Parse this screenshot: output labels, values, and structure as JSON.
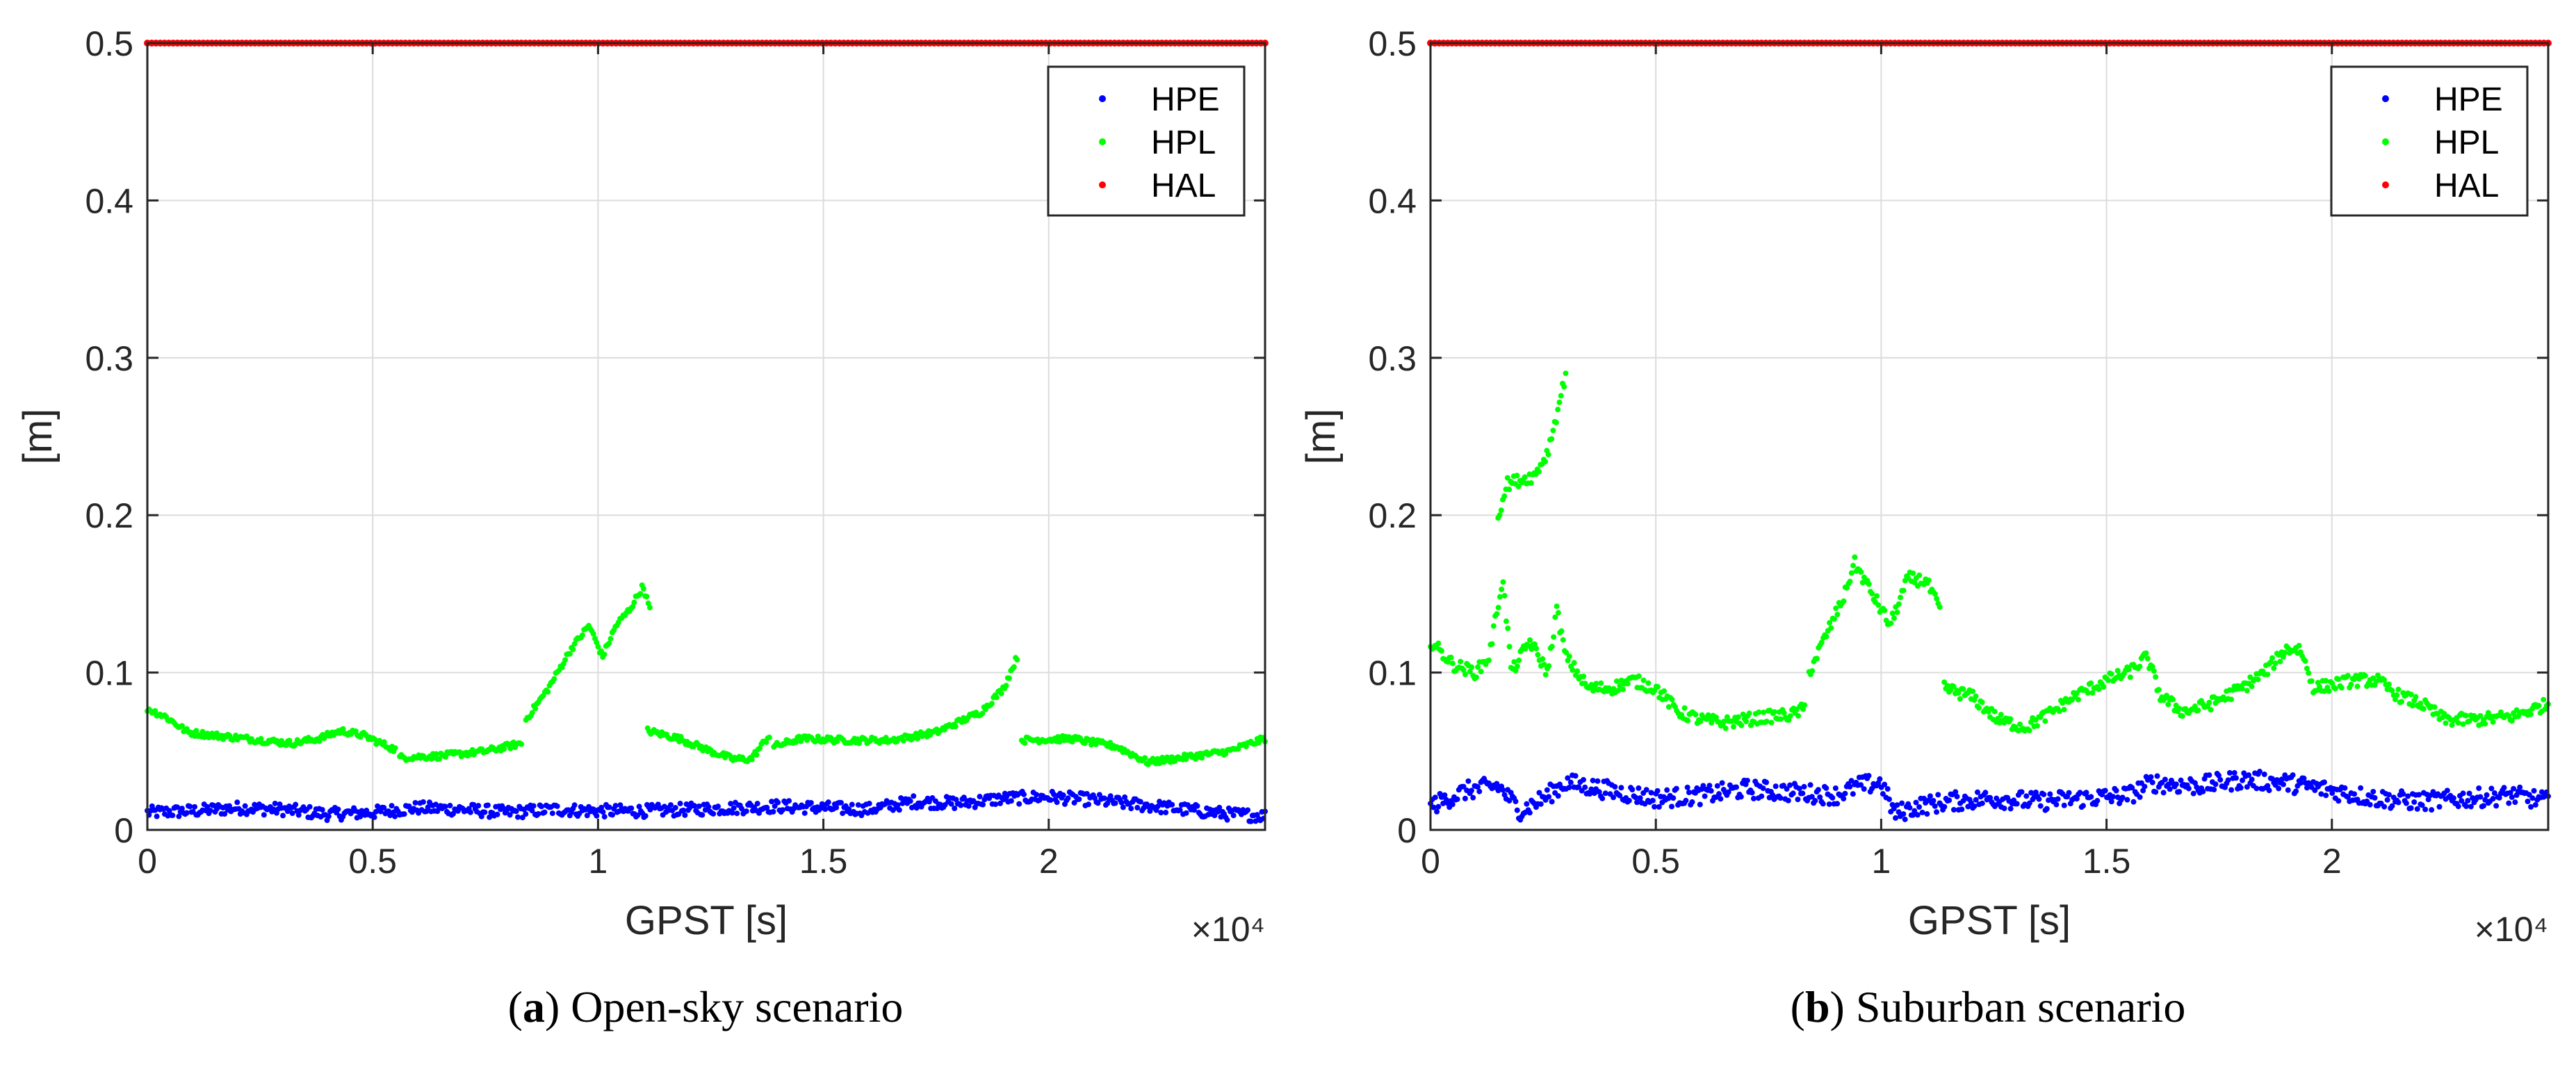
{
  "chart_data": [
    {
      "type": "scatter",
      "caption_letter": "a",
      "caption": "Open-sky scenario",
      "xlabel": "GPST [s]",
      "ylabel": "[m]",
      "x_exponent": "×10⁴",
      "xlim": [
        0,
        24800
      ],
      "ylim": [
        0,
        0.5
      ],
      "x_ticks": [
        0,
        5000,
        10000,
        15000,
        20000
      ],
      "x_tick_labels": [
        "0",
        "0.5",
        "1",
        "1.5",
        "2"
      ],
      "y_ticks": [
        0,
        0.1,
        0.2,
        0.3,
        0.4,
        0.5
      ],
      "y_tick_labels": [
        "0",
        "0.1",
        "0.2",
        "0.3",
        "0.4",
        "0.5"
      ],
      "grid": true,
      "legend_position": "top-right",
      "series": [
        {
          "name": "HPE",
          "color": "#0000ff",
          "spread": 0.004,
          "segments": [
            [
              [
                0,
                0.011
              ],
              [
                1000,
                0.012
              ],
              [
                2000,
                0.014
              ],
              [
                3000,
                0.013
              ],
              [
                4000,
                0.01
              ],
              [
                5000,
                0.011
              ],
              [
                6000,
                0.014
              ],
              [
                7000,
                0.013
              ],
              [
                8000,
                0.011
              ],
              [
                9000,
                0.013
              ],
              [
                10000,
                0.012
              ],
              [
                11000,
                0.012
              ],
              [
                12000,
                0.013
              ],
              [
                13000,
                0.014
              ],
              [
                14000,
                0.015
              ],
              [
                15000,
                0.014
              ],
              [
                16000,
                0.013
              ],
              [
                17000,
                0.018
              ],
              [
                18000,
                0.017
              ],
              [
                19000,
                0.02
              ],
              [
                20000,
                0.021
              ],
              [
                21000,
                0.019
              ],
              [
                22000,
                0.016
              ],
              [
                23000,
                0.013
              ],
              [
                24000,
                0.01
              ],
              [
                24800,
                0.009
              ]
            ]
          ]
        },
        {
          "name": "HPL",
          "color": "#00ff00",
          "spread": 0.002,
          "segments": [
            [
              [
                0,
                0.077
              ],
              [
                400,
                0.072
              ],
              [
                900,
                0.062
              ],
              [
                1500,
                0.06
              ],
              [
                2200,
                0.058
              ],
              [
                3200,
                0.055
              ],
              [
                3800,
                0.058
              ],
              [
                4300,
                0.063
              ],
              [
                4800,
                0.06
              ],
              [
                5500,
                0.051
              ]
            ],
            [
              [
                5600,
                0.046
              ],
              [
                6500,
                0.047
              ],
              [
                7500,
                0.05
              ],
              [
                8300,
                0.055
              ]
            ],
            [
              [
                8400,
                0.07
              ],
              [
                8900,
                0.09
              ],
              [
                9400,
                0.115
              ],
              [
                9800,
                0.13
              ],
              [
                10100,
                0.11
              ],
              [
                10400,
                0.13
              ],
              [
                10700,
                0.14
              ],
              [
                11000,
                0.155
              ],
              [
                11150,
                0.14
              ]
            ],
            [
              [
                11100,
                0.063
              ],
              [
                11800,
                0.058
              ],
              [
                12500,
                0.05
              ],
              [
                13000,
                0.045
              ],
              [
                13400,
                0.045
              ],
              [
                13800,
                0.06
              ]
            ],
            [
              [
                13900,
                0.053
              ],
              [
                14500,
                0.058
              ],
              [
                15500,
                0.057
              ],
              [
                16500,
                0.057
              ],
              [
                17500,
                0.062
              ],
              [
                18500,
                0.075
              ],
              [
                19000,
                0.09
              ],
              [
                19300,
                0.11
              ]
            ],
            [
              [
                19400,
                0.057
              ],
              [
                20500,
                0.058
              ],
              [
                21500,
                0.053
              ],
              [
                22200,
                0.043
              ],
              [
                23000,
                0.046
              ],
              [
                24000,
                0.05
              ],
              [
                24800,
                0.058
              ]
            ]
          ]
        },
        {
          "name": "HAL",
          "color": "#ff0000",
          "spread": 0,
          "segments": [
            [
              [
                0,
                0.5
              ],
              [
                24800,
                0.5
              ]
            ]
          ]
        }
      ]
    },
    {
      "type": "scatter",
      "caption_letter": "b",
      "caption": "Suburban scenario",
      "xlabel": "GPST [s]",
      "ylabel": "[m]",
      "x_exponent": "×10⁴",
      "xlim": [
        0,
        24800
      ],
      "ylim": [
        0,
        0.5
      ],
      "x_ticks": [
        0,
        5000,
        10000,
        15000,
        20000
      ],
      "x_tick_labels": [
        "0",
        "0.5",
        "1",
        "1.5",
        "2"
      ],
      "y_ticks": [
        0,
        0.1,
        0.2,
        0.3,
        0.4,
        0.5
      ],
      "y_tick_labels": [
        "0",
        "0.1",
        "0.2",
        "0.3",
        "0.4",
        "0.5"
      ],
      "grid": true,
      "legend_position": "top-right",
      "series": [
        {
          "name": "HPE",
          "color": "#0000ff",
          "spread": 0.006,
          "segments": [
            [
              [
                0,
                0.015
              ],
              [
                800,
                0.025
              ],
              [
                1500,
                0.028
              ],
              [
                2000,
                0.012
              ],
              [
                2500,
                0.02
              ],
              [
                3000,
                0.03
              ],
              [
                4000,
                0.025
              ],
              [
                5000,
                0.02
              ],
              [
                6000,
                0.022
              ],
              [
                7000,
                0.026
              ],
              [
                8000,
                0.024
              ],
              [
                9000,
                0.022
              ],
              [
                9500,
                0.028
              ],
              [
                10000,
                0.03
              ],
              [
                10300,
                0.01
              ],
              [
                10800,
                0.015
              ],
              [
                11500,
                0.018
              ],
              [
                12500,
                0.02
              ],
              [
                13500,
                0.018
              ],
              [
                14500,
                0.02
              ],
              [
                15500,
                0.022
              ],
              [
                16000,
                0.03
              ],
              [
                17000,
                0.028
              ],
              [
                18000,
                0.032
              ],
              [
                19000,
                0.03
              ],
              [
                20000,
                0.025
              ],
              [
                21000,
                0.02
              ],
              [
                22000,
                0.018
              ],
              [
                23000,
                0.02
              ],
              [
                24000,
                0.022
              ],
              [
                24800,
                0.018
              ]
            ]
          ]
        },
        {
          "name": "HPL",
          "color": "#00ff00",
          "spread": 0.004,
          "segments": [
            [
              [
                0,
                0.12
              ],
              [
                500,
                0.105
              ],
              [
                1000,
                0.1
              ],
              [
                1300,
                0.11
              ],
              [
                1600,
                0.16
              ],
              [
                1800,
                0.1
              ],
              [
                2200,
                0.12
              ],
              [
                2600,
                0.1
              ],
              [
                2800,
                0.14
              ],
              [
                3000,
                0.11
              ],
              [
                3500,
                0.09
              ],
              [
                4000,
                0.09
              ],
              [
                4500,
                0.095
              ],
              [
                5000,
                0.09
              ],
              [
                5500,
                0.075
              ],
              [
                6000,
                0.07
              ],
              [
                6500,
                0.068
              ],
              [
                7000,
                0.07
              ],
              [
                7500,
                0.072
              ],
              [
                8000,
                0.073
              ],
              [
                8300,
                0.077
              ]
            ],
            [
              [
                8400,
                0.1
              ],
              [
                8800,
                0.125
              ],
              [
                9200,
                0.15
              ],
              [
                9400,
                0.17
              ],
              [
                9800,
                0.15
              ],
              [
                10200,
                0.13
              ],
              [
                10600,
                0.16
              ],
              [
                11000,
                0.158
              ],
              [
                11300,
                0.14
              ]
            ],
            [
              [
                11400,
                0.09
              ],
              [
                12000,
                0.085
              ],
              [
                12600,
                0.07
              ],
              [
                13200,
                0.065
              ],
              [
                13800,
                0.075
              ],
              [
                14300,
                0.085
              ],
              [
                15000,
                0.095
              ],
              [
                15500,
                0.1
              ],
              [
                15900,
                0.11
              ],
              [
                16200,
                0.085
              ],
              [
                16700,
                0.075
              ],
              [
                17300,
                0.08
              ],
              [
                18000,
                0.09
              ],
              [
                18500,
                0.1
              ],
              [
                19000,
                0.115
              ],
              [
                19300,
                0.115
              ],
              [
                19600,
                0.09
              ],
              [
                20500,
                0.095
              ],
              [
                21000,
                0.095
              ],
              [
                21500,
                0.085
              ],
              [
                22000,
                0.08
              ],
              [
                22500,
                0.07
              ],
              [
                23200,
                0.07
              ],
              [
                24000,
                0.072
              ],
              [
                24800,
                0.08
              ]
            ],
            [
              [
                1500,
                0.2
              ],
              [
                1700,
                0.22
              ],
              [
                2300,
                0.225
              ],
              [
                2600,
                0.24
              ],
              [
                2850,
                0.27
              ],
              [
                3000,
                0.29
              ]
            ]
          ]
        },
        {
          "name": "HAL",
          "color": "#ff0000",
          "spread": 0,
          "segments": [
            [
              [
                0,
                0.5
              ],
              [
                24800,
                0.5
              ]
            ]
          ]
        }
      ]
    }
  ]
}
